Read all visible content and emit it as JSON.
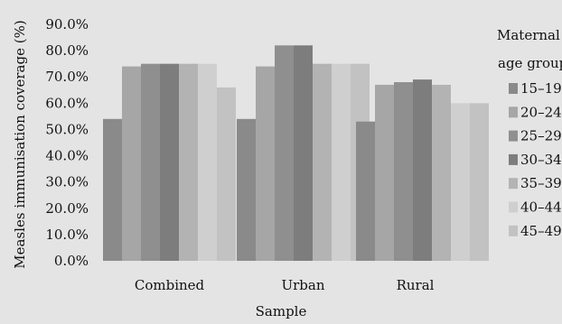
{
  "chart_data": {
    "type": "bar",
    "title": "",
    "xlabel": "Sample",
    "ylabel": "Measles immunisation coverage (%)",
    "categories": [
      "Combined",
      "Urban",
      "Rural"
    ],
    "ylim": [
      0,
      90
    ],
    "yticks": [
      "0.0%",
      "10.0%",
      "20.0%",
      "30.0%",
      "40.0%",
      "50.0%",
      "60.0%",
      "70.0%",
      "80.0%",
      "90.0%"
    ],
    "grid": false,
    "legend": {
      "title_line1": "Maternal",
      "title_line2": "age group",
      "placement": "right"
    },
    "series": [
      {
        "name": "15–19",
        "color": "#8a8a8a",
        "values": [
          54,
          54,
          53
        ]
      },
      {
        "name": "20–24",
        "color": "#a6a6a6",
        "values": [
          74,
          74,
          67
        ]
      },
      {
        "name": "25–29",
        "color": "#8f8f8f",
        "values": [
          75,
          82,
          68
        ]
      },
      {
        "name": "30–34",
        "color": "#7d7d7d",
        "values": [
          75,
          82,
          69
        ]
      },
      {
        "name": "35–39",
        "color": "#b3b3b3",
        "values": [
          75,
          75,
          67
        ]
      },
      {
        "name": "40–44",
        "color": "#cfcfcf",
        "values": [
          75,
          75,
          60
        ]
      },
      {
        "name": "45–49",
        "color": "#c2c2c2",
        "values": [
          66,
          75,
          60
        ]
      }
    ]
  }
}
